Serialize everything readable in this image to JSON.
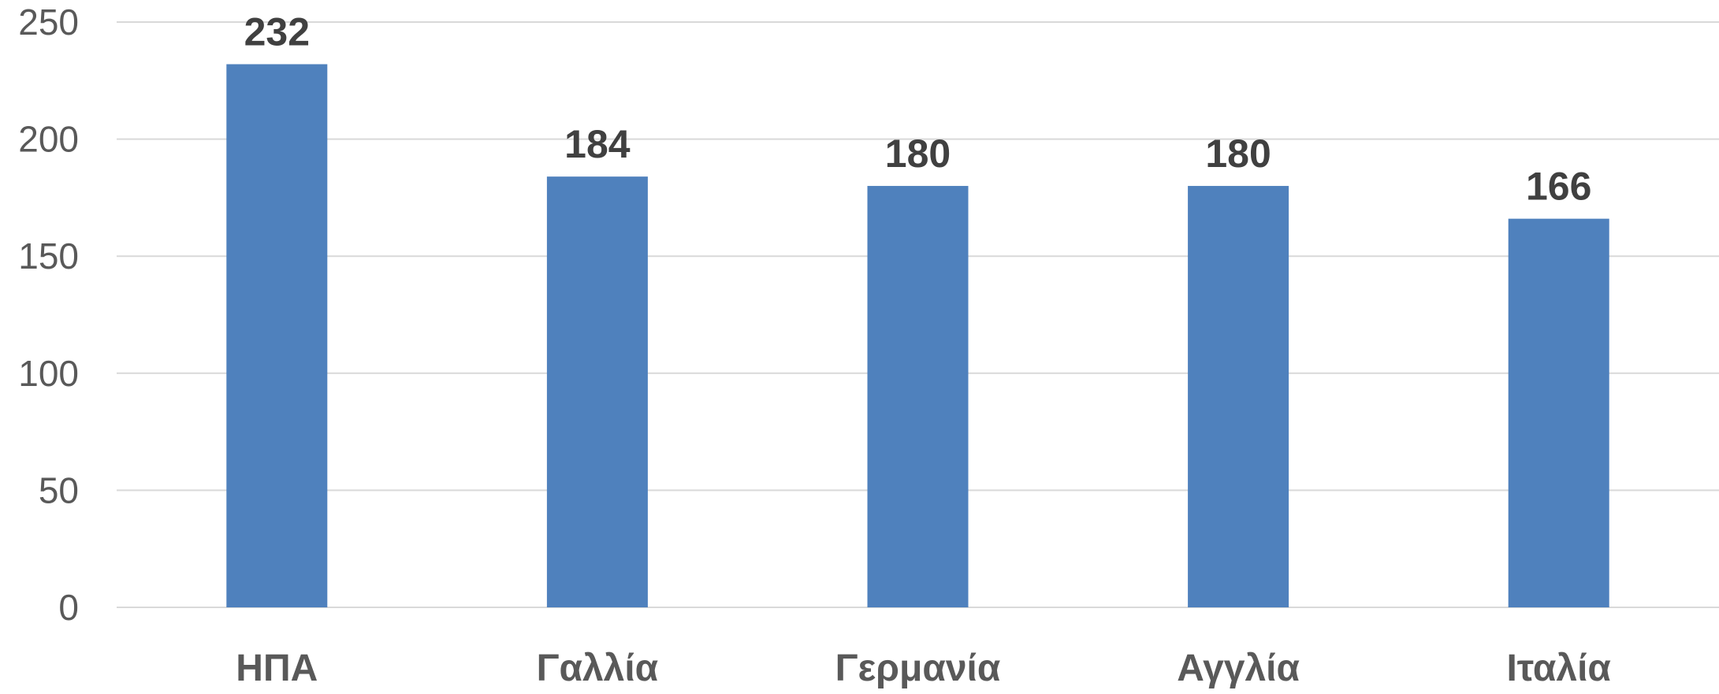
{
  "chart_data": {
    "type": "bar",
    "title": "",
    "xlabel": "",
    "ylabel": "",
    "categories": [
      "ΗΠΑ",
      "Γαλλία",
      "Γερμανία",
      "Αγγλία",
      "Ιταλία"
    ],
    "values": [
      232,
      184,
      180,
      180,
      166
    ],
    "ylim": [
      0,
      250
    ],
    "yticks": [
      0,
      50,
      100,
      150,
      200,
      250
    ],
    "grid": true,
    "legend": "none",
    "bar_color": "#4f81bd",
    "show_data_labels": true
  }
}
